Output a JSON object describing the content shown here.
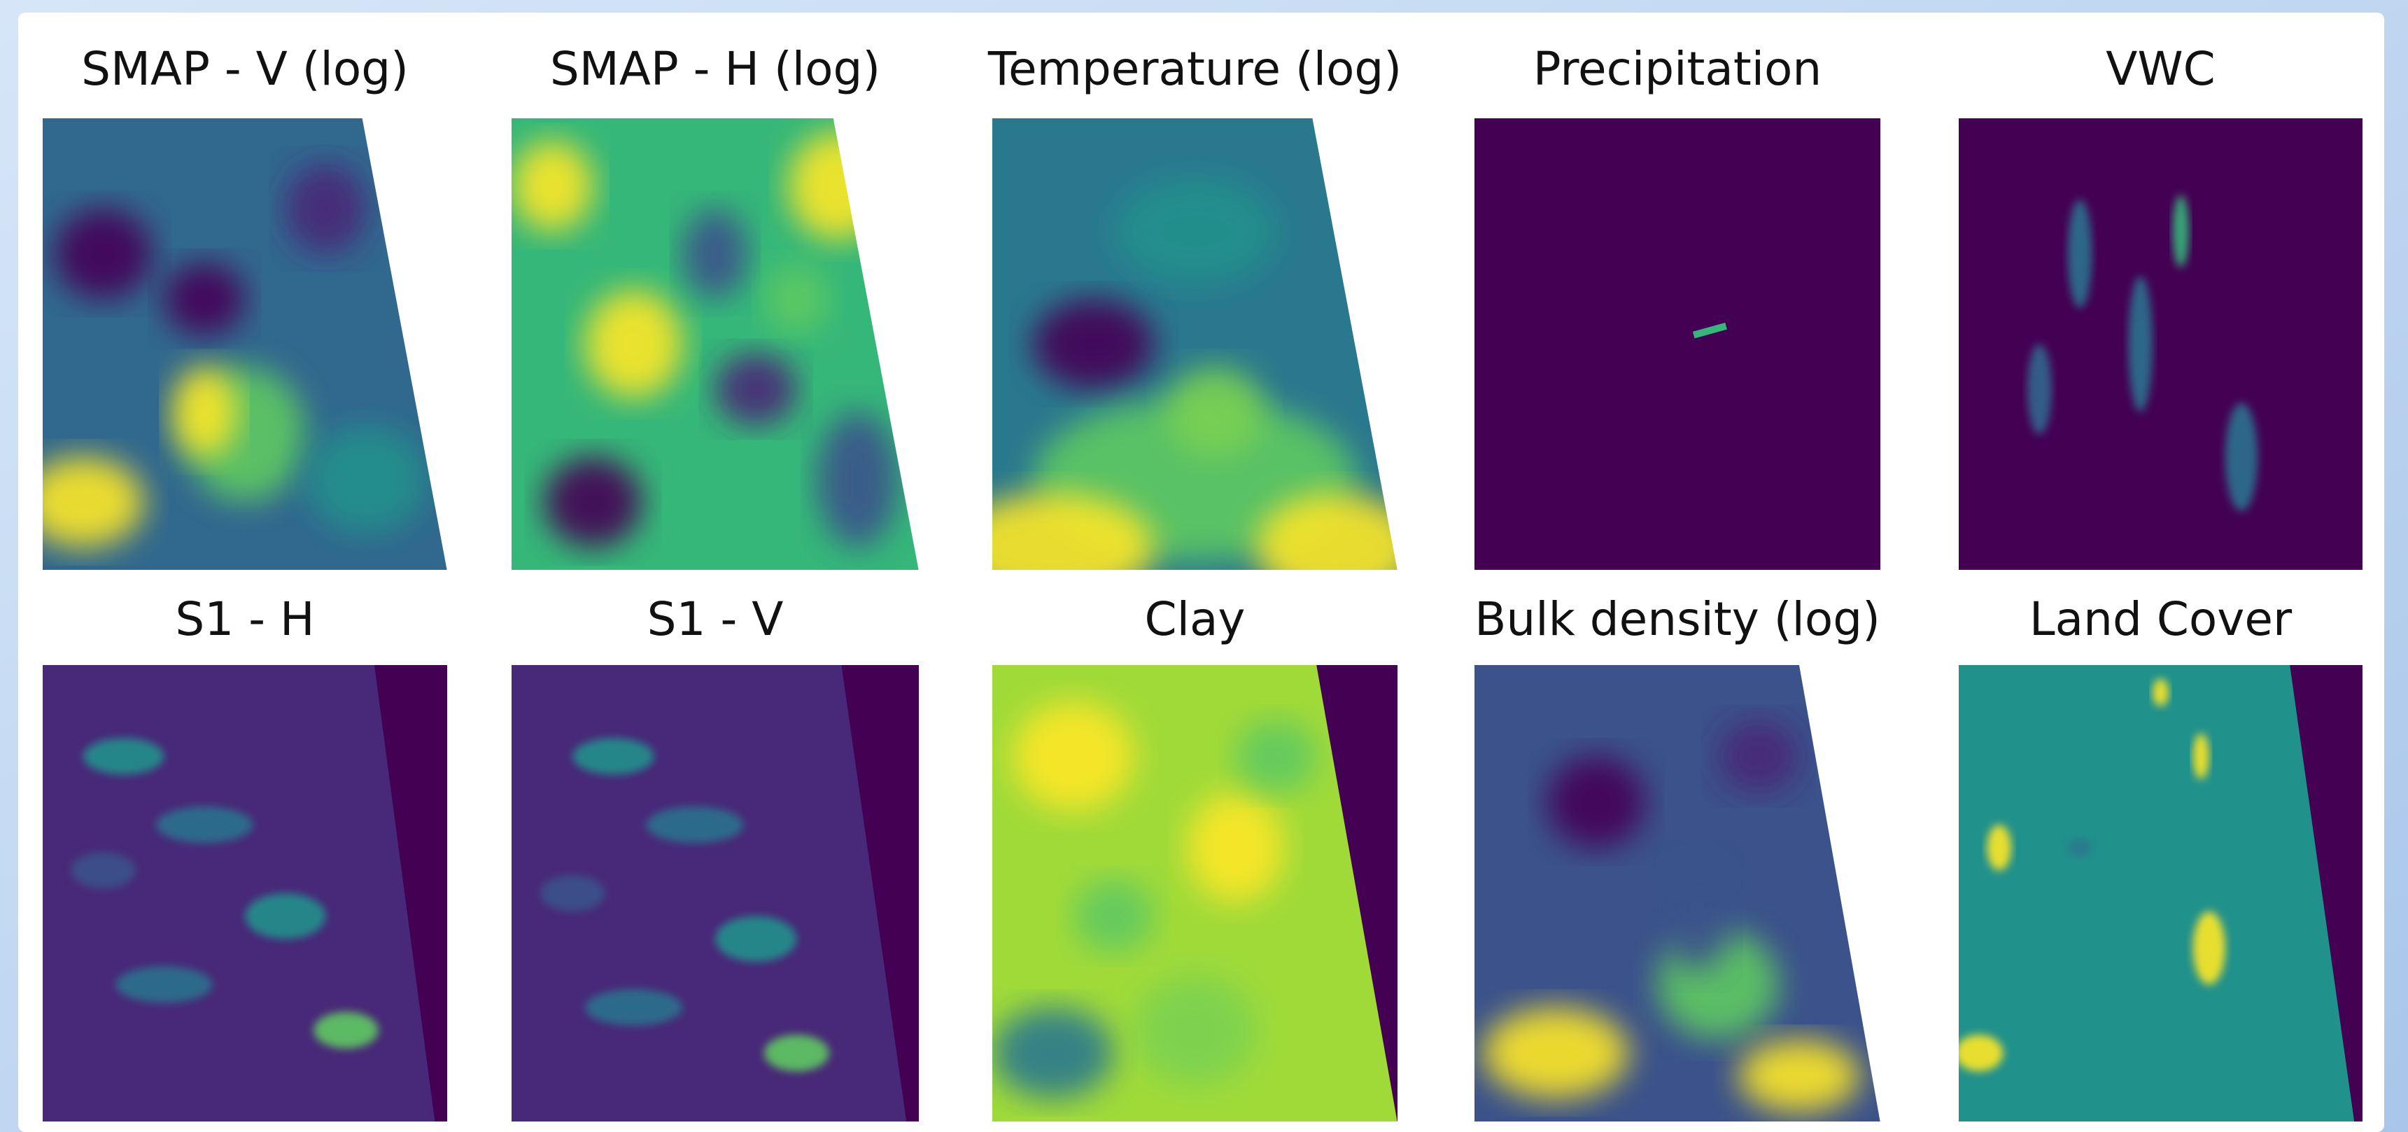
{
  "figure": {
    "panels": [
      {
        "title": "SMAP - V (log)"
      },
      {
        "title": "SMAP - H (log)"
      },
      {
        "title": "Temperature (log)"
      },
      {
        "title": "Precipitation"
      },
      {
        "title": "VWC"
      },
      {
        "title": "S1 - H"
      },
      {
        "title": "S1 - V"
      },
      {
        "title": "Clay"
      },
      {
        "title": "Bulk density (log)"
      },
      {
        "title": "Land Cover"
      }
    ]
  }
}
